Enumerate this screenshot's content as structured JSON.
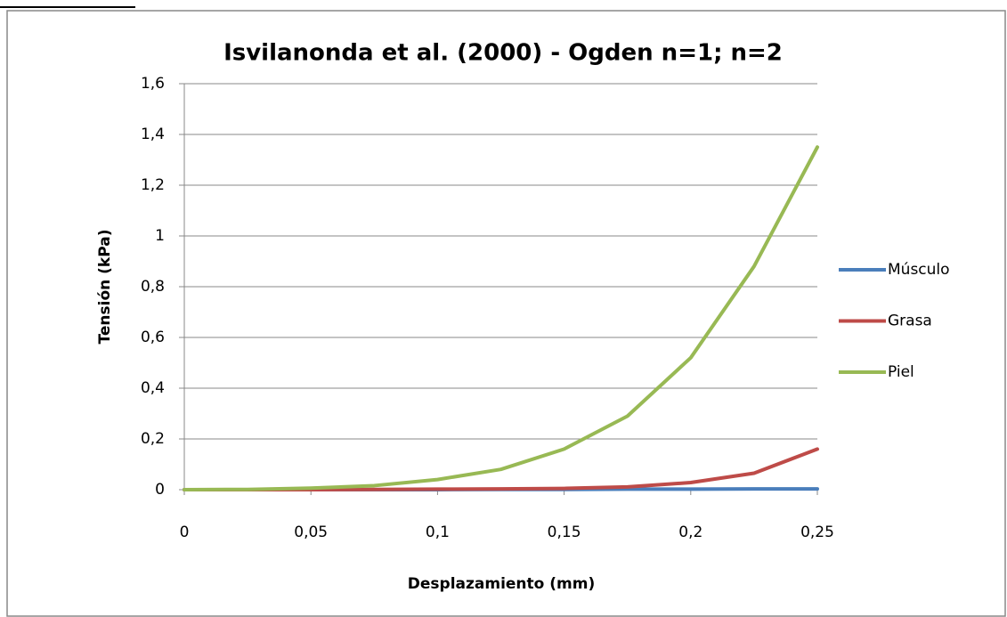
{
  "chart_data": {
    "type": "line",
    "title": "Isvilanonda et al. (2000) - Ogden n=1; n=2",
    "xlabel": "Desplazamiento (mm)",
    "ylabel": "Tensión (kPa)",
    "x": [
      0,
      0.025,
      0.05,
      0.075,
      0.1,
      0.125,
      0.15,
      0.175,
      0.2,
      0.225,
      0.25
    ],
    "series": [
      {
        "name": "Músculo",
        "color": "#4a7ebb",
        "values": [
          0,
          0,
          0,
          0,
          0,
          0.001,
          0.001,
          0.002,
          0.002,
          0.003,
          0.003
        ]
      },
      {
        "name": "Grasa",
        "color": "#be4b48",
        "values": [
          0,
          0,
          0,
          0.001,
          0.002,
          0.003,
          0.005,
          0.011,
          0.028,
          0.065,
          0.16
        ]
      },
      {
        "name": "Piel",
        "color": "#98b954",
        "values": [
          0,
          0.001,
          0.006,
          0.016,
          0.04,
          0.08,
          0.16,
          0.29,
          0.52,
          0.88,
          1.35
        ]
      }
    ],
    "xlim": [
      0,
      0.25
    ],
    "xticks": [
      0,
      {
        "value": 0.05,
        "label": "0,05"
      },
      {
        "value": 0.1,
        "label": "0,1"
      },
      {
        "value": 0.15,
        "label": "0,15"
      },
      {
        "value": 0.2,
        "label": "0,2"
      },
      {
        "value": 0.25,
        "label": "0,25"
      }
    ],
    "ylim": [
      0,
      1.6
    ],
    "yticks": [
      0,
      {
        "value": 0.2,
        "label": "0,2"
      },
      {
        "value": 0.4,
        "label": "0,4"
      },
      {
        "value": 0.6,
        "label": "0,6"
      },
      {
        "value": 0.8,
        "label": "0,8"
      },
      1,
      {
        "value": 1.2,
        "label": "1,2"
      },
      {
        "value": 1.4,
        "label": "1,4"
      },
      {
        "value": 1.6,
        "label": "1,6"
      }
    ],
    "grid": true,
    "legend": "right"
  }
}
